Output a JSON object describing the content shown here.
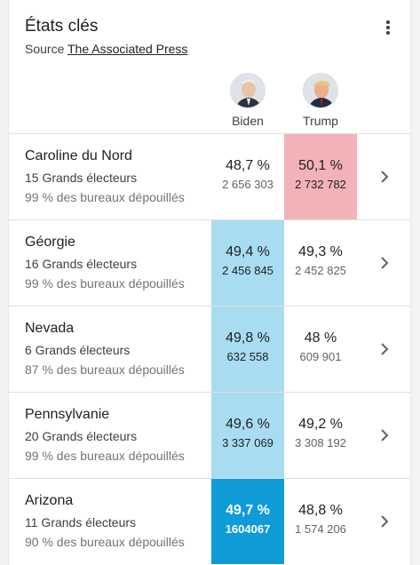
{
  "header": {
    "title": "États clés",
    "source_prefix": "Source",
    "source_link": "The Associated Press"
  },
  "candidates": [
    {
      "name": "Biden",
      "color": "#0f9bd7"
    },
    {
      "name": "Trump",
      "color": "#e8434f"
    }
  ],
  "states": [
    {
      "name": "Caroline du Nord",
      "electors": "15 Grands électeurs",
      "reporting": "99 % des bureaux dépouillés",
      "biden_pct": "48,7 %",
      "biden_votes": "2 656 303",
      "trump_pct": "50,1 %",
      "trump_votes": "2 732 782",
      "leader": "trump"
    },
    {
      "name": "Géorgie",
      "electors": "16 Grands électeurs",
      "reporting": "99 % des bureaux dépouillés",
      "biden_pct": "49,4 %",
      "biden_votes": "2 456 845",
      "trump_pct": "49,3 %",
      "trump_votes": "2 452 825",
      "leader": "biden"
    },
    {
      "name": "Nevada",
      "electors": "6 Grands électeurs",
      "reporting": "87 % des bureaux dépouillés",
      "biden_pct": "49,8 %",
      "biden_votes": "632 558",
      "trump_pct": "48 %",
      "trump_votes": "609 901",
      "leader": "biden"
    },
    {
      "name": "Pennsylvanie",
      "electors": "20 Grands électeurs",
      "reporting": "99 % des bureaux dépouillés",
      "biden_pct": "49,6 %",
      "biden_votes": "3 337 069",
      "trump_pct": "49,2 %",
      "trump_votes": "3 308 192",
      "leader": "biden"
    },
    {
      "name": "Arizona",
      "electors": "11 Grands électeurs",
      "reporting": "90 % des bureaux dépouillés",
      "biden_pct": "49,7 %",
      "biden_votes": "1604067",
      "trump_pct": "48,8 %",
      "trump_votes": "1 574 206",
      "leader": "biden-winner"
    }
  ]
}
